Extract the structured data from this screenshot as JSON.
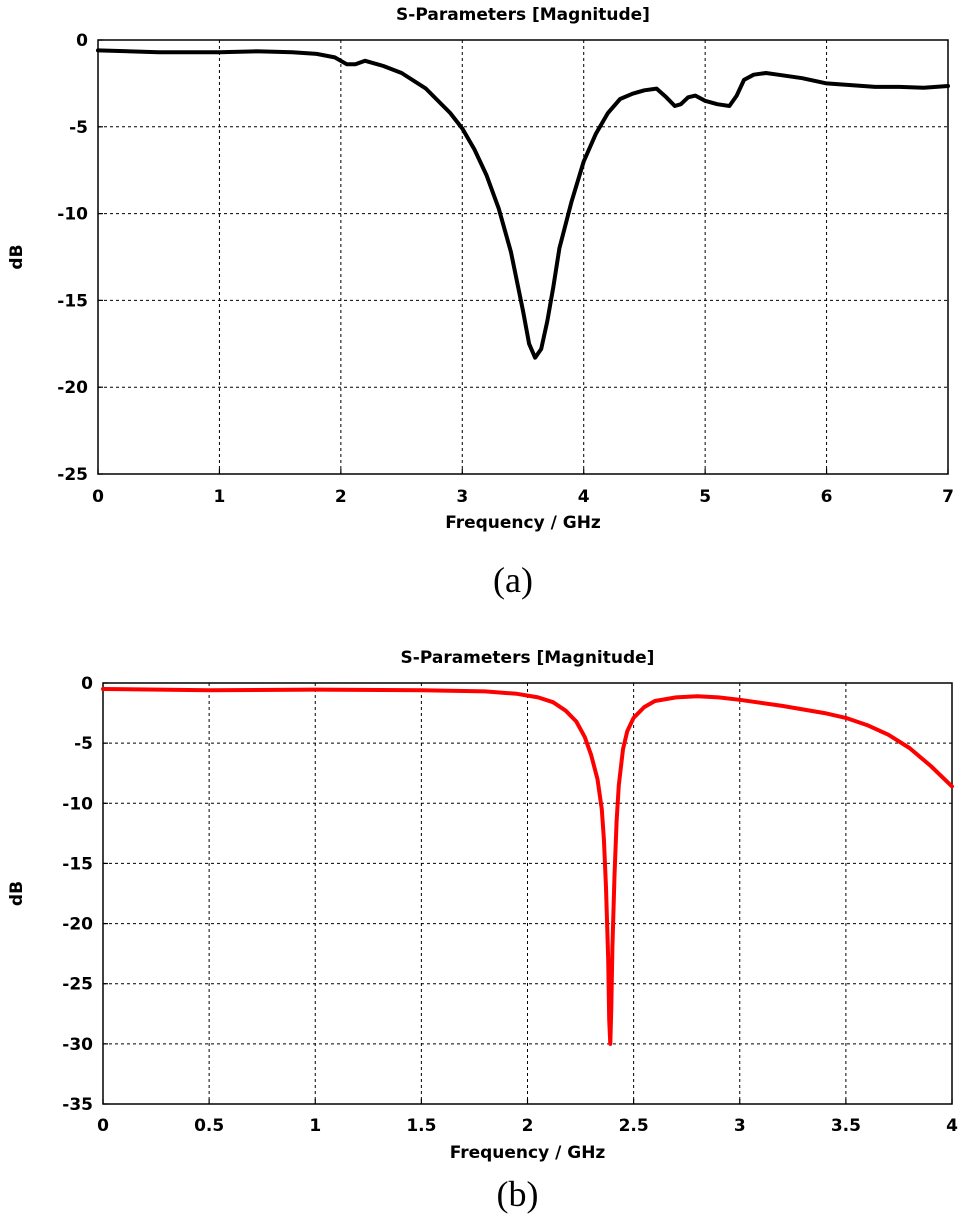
{
  "chart_data": [
    {
      "type": "line",
      "title": "S-Parameters [Magnitude]",
      "xlabel": "Frequency / GHz",
      "ylabel": "dB",
      "caption": "(a)",
      "xlim": [
        0,
        7
      ],
      "ylim": [
        -25,
        0
      ],
      "xticks": [
        0,
        1,
        2,
        3,
        4,
        5,
        6,
        7
      ],
      "yticks": [
        0,
        -5,
        -10,
        -15,
        -20,
        -25
      ],
      "xtick_labels": [
        "0",
        "1",
        "2",
        "3",
        "4",
        "5",
        "6",
        "7"
      ],
      "ytick_labels": [
        "0",
        "-5",
        "-10",
        "-15",
        "-20",
        "-25"
      ],
      "grid": true,
      "series": [
        {
          "color": "#000000",
          "x": [
            0,
            0.5,
            1.0,
            1.3,
            1.6,
            1.8,
            1.95,
            2.05,
            2.12,
            2.2,
            2.35,
            2.5,
            2.7,
            2.9,
            3.0,
            3.1,
            3.2,
            3.3,
            3.4,
            3.5,
            3.55,
            3.6,
            3.65,
            3.7,
            3.75,
            3.8,
            3.9,
            4.0,
            4.1,
            4.2,
            4.3,
            4.4,
            4.5,
            4.6,
            4.68,
            4.75,
            4.8,
            4.86,
            4.92,
            5.0,
            5.1,
            5.2,
            5.26,
            5.32,
            5.4,
            5.5,
            5.6,
            5.8,
            6.0,
            6.2,
            6.4,
            6.6,
            6.8,
            7.0
          ],
          "y": [
            -0.6,
            -0.7,
            -0.7,
            -0.65,
            -0.7,
            -0.8,
            -1.0,
            -1.4,
            -1.4,
            -1.2,
            -1.5,
            -1.9,
            -2.8,
            -4.2,
            -5.1,
            -6.3,
            -7.8,
            -9.7,
            -12.2,
            -15.6,
            -17.5,
            -18.3,
            -17.8,
            -16.2,
            -14.2,
            -12.0,
            -9.3,
            -7.0,
            -5.4,
            -4.2,
            -3.4,
            -3.1,
            -2.9,
            -2.8,
            -3.3,
            -3.8,
            -3.7,
            -3.3,
            -3.2,
            -3.5,
            -3.7,
            -3.8,
            -3.2,
            -2.3,
            -2.0,
            -1.9,
            -2.0,
            -2.2,
            -2.5,
            -2.6,
            -2.7,
            -2.7,
            -2.75,
            -2.65
          ]
        }
      ]
    },
    {
      "type": "line",
      "title": "S-Parameters [Magnitude]",
      "xlabel": "Frequency / GHz",
      "ylabel": "dB",
      "caption": "(b)",
      "xlim": [
        0,
        4
      ],
      "ylim": [
        -35,
        0
      ],
      "xticks": [
        0,
        0.5,
        1,
        1.5,
        2,
        2.5,
        3,
        3.5,
        4
      ],
      "yticks": [
        0,
        -5,
        -10,
        -15,
        -20,
        -25,
        -30,
        -35
      ],
      "xtick_labels": [
        "0",
        "0.5",
        "1",
        "1.5",
        "2",
        "2.5",
        "3",
        "3.5",
        "4"
      ],
      "ytick_labels": [
        "0",
        "-5",
        "-10",
        "-15",
        "-20",
        "-25",
        "-30",
        "-35"
      ],
      "grid": true,
      "series": [
        {
          "color": "#ff0000",
          "x": [
            0,
            0.5,
            1.0,
            1.5,
            1.8,
            1.95,
            2.05,
            2.12,
            2.18,
            2.23,
            2.27,
            2.3,
            2.33,
            2.35,
            2.36,
            2.37,
            2.38,
            2.385,
            2.39,
            2.395,
            2.4,
            2.41,
            2.42,
            2.43,
            2.45,
            2.47,
            2.5,
            2.55,
            2.6,
            2.7,
            2.8,
            2.9,
            3.0,
            3.2,
            3.4,
            3.5,
            3.6,
            3.7,
            3.8,
            3.9,
            4.0
          ],
          "y": [
            -0.5,
            -0.6,
            -0.55,
            -0.6,
            -0.7,
            -0.9,
            -1.2,
            -1.6,
            -2.3,
            -3.2,
            -4.5,
            -6.0,
            -8.0,
            -10.5,
            -13.0,
            -17.0,
            -23.0,
            -28.0,
            -30.0,
            -27.0,
            -22.0,
            -16.0,
            -11.5,
            -8.5,
            -5.5,
            -4.0,
            -2.9,
            -2.0,
            -1.5,
            -1.2,
            -1.1,
            -1.2,
            -1.4,
            -1.9,
            -2.5,
            -2.9,
            -3.5,
            -4.3,
            -5.4,
            -6.9,
            -8.6
          ]
        }
      ]
    }
  ]
}
